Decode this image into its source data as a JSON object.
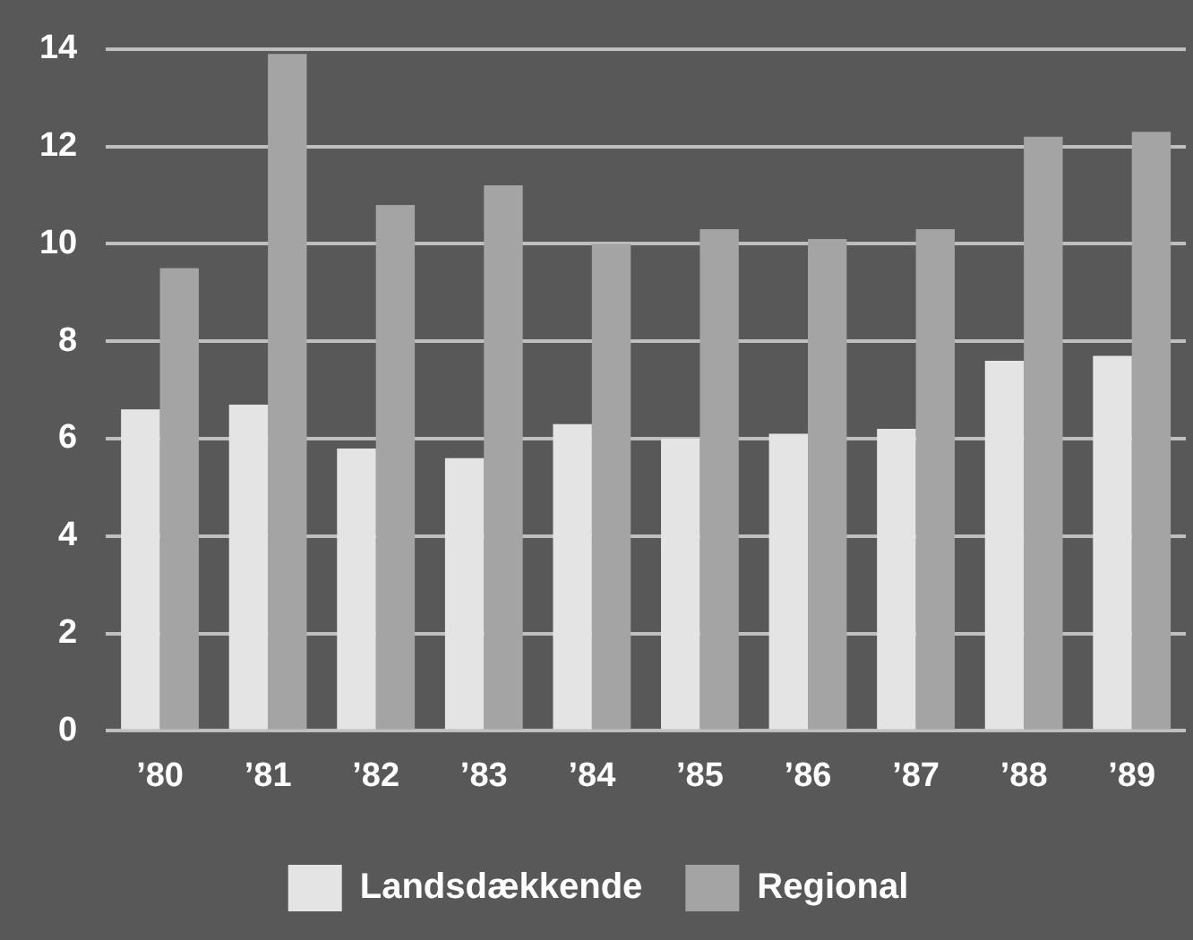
{
  "chart_data": {
    "type": "bar",
    "categories": [
      "’80",
      "’81",
      "’82",
      "’83",
      "’84",
      "’85",
      "’86",
      "’87",
      "’88",
      "’89"
    ],
    "series": [
      {
        "name": "Landsdækkende",
        "color": "#e4e4e4",
        "values": [
          6.6,
          6.7,
          5.8,
          5.6,
          6.3,
          6.0,
          6.1,
          6.2,
          7.6,
          7.7
        ]
      },
      {
        "name": "Regional",
        "color": "#a4a4a4",
        "values": [
          9.5,
          13.9,
          10.8,
          11.2,
          10.0,
          10.3,
          10.1,
          10.3,
          12.2,
          12.3
        ]
      }
    ],
    "ylim": [
      0,
      14
    ],
    "yticks": [
      0,
      2,
      4,
      6,
      8,
      10,
      12,
      14
    ],
    "grid": "y",
    "legend": "bottom"
  }
}
